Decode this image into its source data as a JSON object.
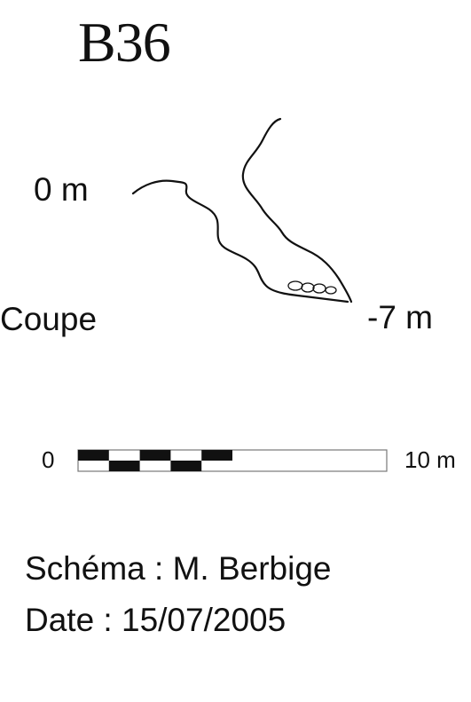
{
  "title": "B36",
  "section": {
    "view_label": "Coupe",
    "depth_top": "0 m",
    "depth_bottom": "-7 m"
  },
  "scale_bar": {
    "start_label": "0",
    "end_label": "10 m",
    "segments": 10
  },
  "credits": {
    "schema": "Schéma : M. Berbige",
    "date": "Date : 15/07/2005"
  },
  "colors": {
    "ink": "#111111",
    "background": "#ffffff"
  }
}
